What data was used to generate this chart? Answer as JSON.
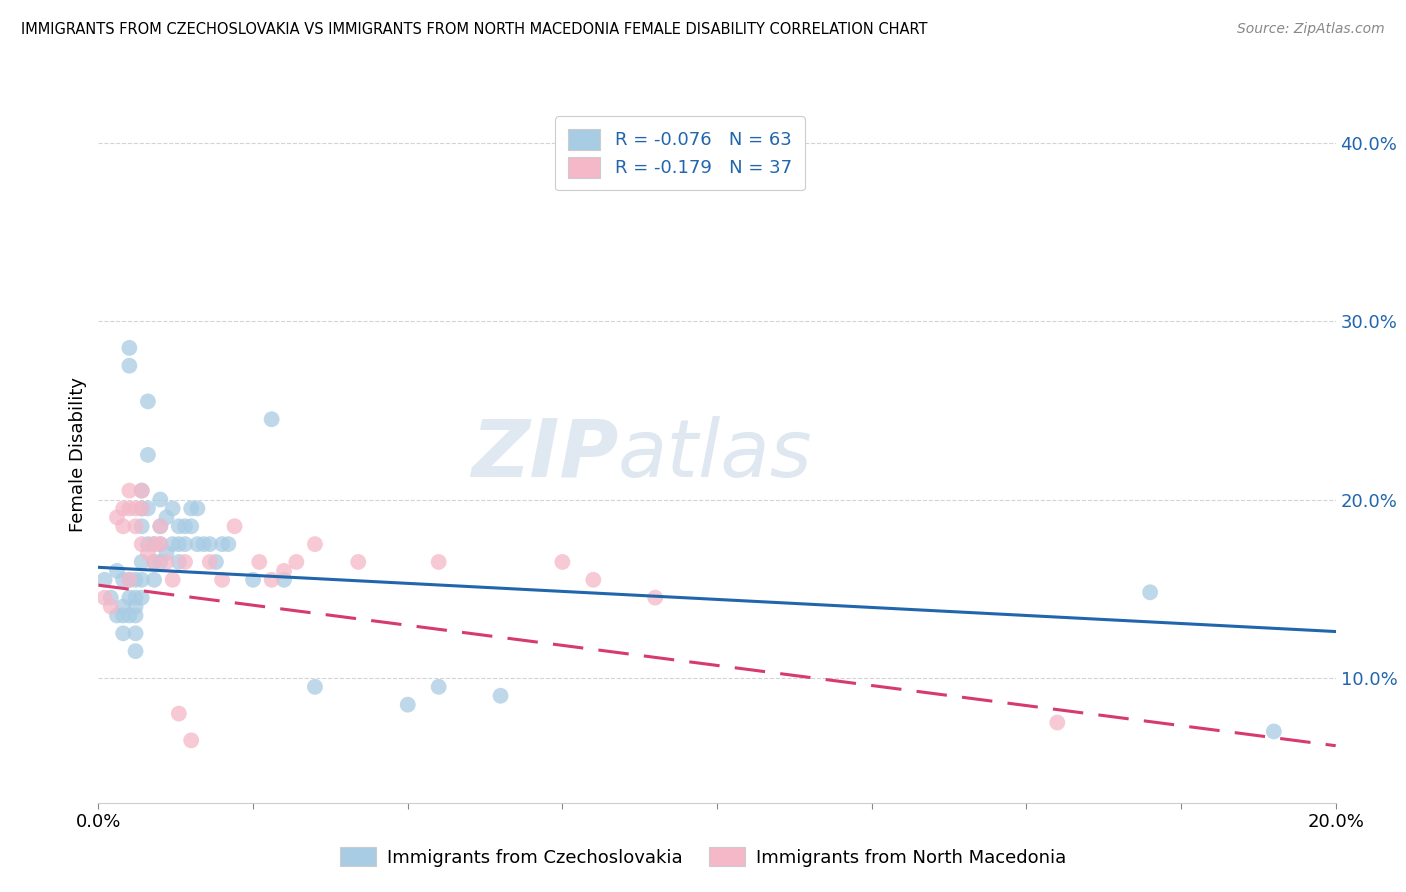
{
  "title": "IMMIGRANTS FROM CZECHOSLOVAKIA VS IMMIGRANTS FROM NORTH MACEDONIA FEMALE DISABILITY CORRELATION CHART",
  "source": "Source: ZipAtlas.com",
  "ylabel": "Female Disability",
  "xlim": [
    0.0,
    0.2
  ],
  "ylim": [
    0.03,
    0.42
  ],
  "yticks": [
    0.1,
    0.2,
    0.3,
    0.4
  ],
  "ytick_labels": [
    "10.0%",
    "20.0%",
    "30.0%",
    "40.0%"
  ],
  "xticks": [
    0.0,
    0.025,
    0.05,
    0.075,
    0.1,
    0.125,
    0.15,
    0.175,
    0.2
  ],
  "xtick_labels_show": {
    "0.0": "0.0%",
    "0.20": "20.0%"
  },
  "legend_blue_r": "R = -0.076",
  "legend_blue_n": "N = 63",
  "legend_pink_r": "R = -0.179",
  "legend_pink_n": "N = 37",
  "legend_blue_label": "Immigrants from Czechoslovakia",
  "legend_pink_label": "Immigrants from North Macedonia",
  "blue_color": "#a8cce4",
  "pink_color": "#f4b8c8",
  "blue_line_color": "#2166ac",
  "pink_line_color": "#d63a6e",
  "blue_intercept": 0.162,
  "blue_slope": -0.18,
  "pink_intercept": 0.152,
  "pink_slope": -0.45,
  "blue_x": [
    0.001,
    0.002,
    0.003,
    0.003,
    0.004,
    0.004,
    0.004,
    0.004,
    0.005,
    0.005,
    0.005,
    0.005,
    0.005,
    0.006,
    0.006,
    0.006,
    0.006,
    0.006,
    0.006,
    0.007,
    0.007,
    0.007,
    0.007,
    0.007,
    0.007,
    0.008,
    0.008,
    0.008,
    0.008,
    0.009,
    0.009,
    0.009,
    0.01,
    0.01,
    0.01,
    0.01,
    0.011,
    0.011,
    0.012,
    0.012,
    0.013,
    0.013,
    0.013,
    0.014,
    0.014,
    0.015,
    0.015,
    0.016,
    0.016,
    0.017,
    0.018,
    0.019,
    0.02,
    0.021,
    0.025,
    0.028,
    0.03,
    0.035,
    0.05,
    0.055,
    0.065,
    0.17,
    0.19
  ],
  "blue_y": [
    0.155,
    0.145,
    0.16,
    0.135,
    0.14,
    0.155,
    0.135,
    0.125,
    0.285,
    0.275,
    0.155,
    0.145,
    0.135,
    0.155,
    0.14,
    0.145,
    0.135,
    0.125,
    0.115,
    0.205,
    0.195,
    0.185,
    0.165,
    0.155,
    0.145,
    0.255,
    0.225,
    0.195,
    0.175,
    0.175,
    0.165,
    0.155,
    0.2,
    0.185,
    0.175,
    0.165,
    0.19,
    0.17,
    0.195,
    0.175,
    0.185,
    0.175,
    0.165,
    0.185,
    0.175,
    0.195,
    0.185,
    0.195,
    0.175,
    0.175,
    0.175,
    0.165,
    0.175,
    0.175,
    0.155,
    0.245,
    0.155,
    0.095,
    0.085,
    0.095,
    0.09,
    0.148,
    0.07
  ],
  "pink_x": [
    0.001,
    0.002,
    0.003,
    0.004,
    0.004,
    0.005,
    0.005,
    0.005,
    0.006,
    0.006,
    0.007,
    0.007,
    0.007,
    0.008,
    0.009,
    0.009,
    0.01,
    0.01,
    0.011,
    0.012,
    0.013,
    0.014,
    0.015,
    0.018,
    0.02,
    0.022,
    0.026,
    0.028,
    0.03,
    0.032,
    0.035,
    0.042,
    0.055,
    0.075,
    0.08,
    0.09,
    0.155
  ],
  "pink_y": [
    0.145,
    0.14,
    0.19,
    0.195,
    0.185,
    0.205,
    0.195,
    0.155,
    0.195,
    0.185,
    0.175,
    0.205,
    0.195,
    0.17,
    0.175,
    0.165,
    0.185,
    0.175,
    0.165,
    0.155,
    0.08,
    0.165,
    0.065,
    0.165,
    0.155,
    0.185,
    0.165,
    0.155,
    0.16,
    0.165,
    0.175,
    0.165,
    0.165,
    0.165,
    0.155,
    0.145,
    0.075
  ],
  "watermark_zip": "ZIP",
  "watermark_atlas": "atlas",
  "background_color": "#ffffff",
  "grid_color": "#d0d0d0"
}
